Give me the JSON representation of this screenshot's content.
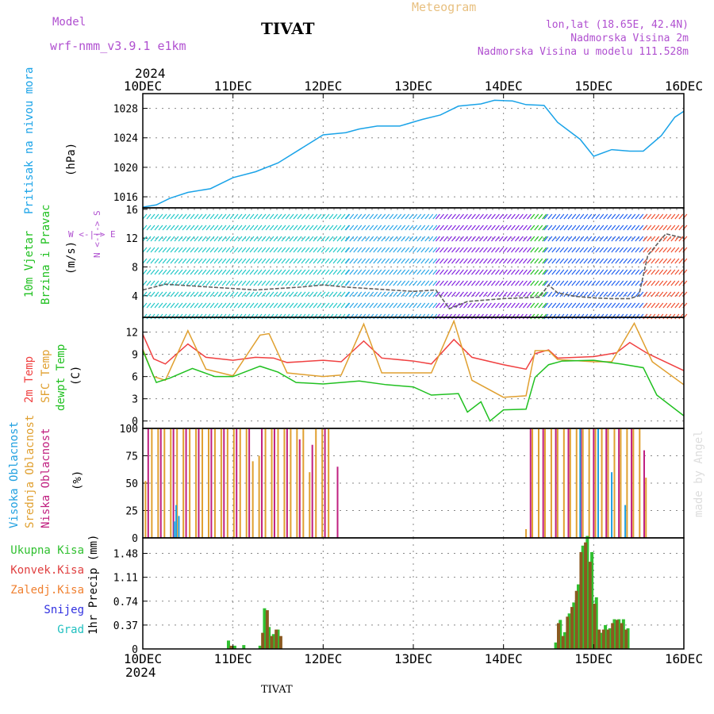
{
  "header": {
    "model_label": "Model",
    "model_name": "wrf-nmm_v3.9.1 e1km",
    "station": "TIVAT",
    "product": "Meteogram",
    "lonlat": "lon,lat (18.65E, 42.4N)",
    "elevation": "Nadmorska Visina 2m",
    "model_elevation": "Nadmorska Visina u modelu 111.528m",
    "year_top": "2024",
    "year_bottom": "2024",
    "footer_station": "TIVAT",
    "watermark": "made by Angel"
  },
  "colors": {
    "pressure": "#1aa3e8",
    "wind_cyan": "#20c8c8",
    "wind_blue": "#2060f0",
    "wind_violet": "#8020e0",
    "temp_2m": "#f04040",
    "temp_sfc": "#e0a030",
    "dewpoint": "#20c020",
    "cloud_high": "#20a0e0",
    "cloud_mid": "#e0a030",
    "cloud_low": "#c02080",
    "precip_total": "#30c030",
    "precip_conv": "#e04040",
    "precip_frz": "#f08030",
    "precip_snow": "#3030e0",
    "precip_hail": "#20c0c0"
  },
  "chart_data": [
    {
      "type": "line",
      "panel": "pressure",
      "ylabel_name": "Pritisak na nivou mora",
      "ylabel_unit": "(hPa)",
      "x_ticks": [
        "10DEC",
        "11DEC",
        "12DEC",
        "13DEC",
        "14DEC",
        "15DEC",
        "16DEC"
      ],
      "y_ticks": [
        "1016",
        "1020",
        "1024",
        "1028"
      ],
      "ylim": [
        1014.5,
        1030.0
      ],
      "grid": true,
      "series": [
        {
          "x": [
            0,
            0.15,
            0.3,
            0.5,
            0.75,
            1.0,
            1.25,
            1.5,
            1.75,
            2.0,
            2.25,
            2.4,
            2.6,
            2.85,
            3.1,
            3.3,
            3.5,
            3.75,
            3.9,
            4.1,
            4.25,
            4.45,
            4.6,
            4.85,
            5.0,
            5.2,
            5.4,
            5.55,
            5.75,
            5.9,
            6.0
          ],
          "values": [
            1014.6,
            1014.9,
            1015.8,
            1016.6,
            1017.1,
            1018.6,
            1019.4,
            1020.6,
            1022.5,
            1024.4,
            1024.7,
            1025.2,
            1025.6,
            1025.6,
            1026.5,
            1027.1,
            1028.3,
            1028.6,
            1029.1,
            1029.0,
            1028.5,
            1028.4,
            1026.1,
            1023.8,
            1021.5,
            1022.4,
            1022.2,
            1022.2,
            1024.3,
            1026.8,
            1027.6
          ]
        }
      ]
    },
    {
      "type": "line",
      "panel": "wind",
      "ylabel_name": "10m Vjetar",
      "ylabel_name2": "Brzina i Pravac",
      "ylabel_unit": "(m/s)",
      "compass_ns": "N <-|-> S",
      "compass_ew": "W <-|-> E",
      "y_ticks": [
        "4",
        "8",
        "12",
        "16"
      ],
      "ylim": [
        1,
        16.2
      ],
      "grid": true,
      "series": [
        {
          "x": [
            0,
            0.25,
            0.5,
            0.75,
            1.0,
            1.25,
            1.5,
            1.75,
            2.0,
            2.25,
            2.5,
            2.75,
            3.0,
            3.25,
            3.4,
            3.6,
            3.8,
            4.0,
            4.2,
            4.4,
            4.5,
            4.6,
            4.8,
            5.0,
            5.2,
            5.4,
            5.5,
            5.6,
            5.8,
            6.0
          ],
          "values": [
            4.8,
            5.6,
            5.4,
            5.2,
            5.0,
            4.8,
            5.0,
            5.2,
            5.5,
            5.2,
            5.0,
            4.8,
            4.6,
            4.8,
            2.2,
            3.2,
            3.4,
            3.6,
            3.7,
            3.8,
            5.5,
            4.4,
            3.9,
            3.7,
            3.6,
            3.6,
            4.0,
            9.6,
            12.6,
            12.0
          ]
        }
      ]
    },
    {
      "type": "line",
      "panel": "temperature",
      "ylabel_name": "2m Temp",
      "ylabel_name2": "SFC Temp",
      "ylabel_name3": "dewpt Temp",
      "ylabel_unit": "(C)",
      "y_ticks": [
        "0",
        "3",
        "6",
        "9",
        "12"
      ],
      "ylim": [
        -1,
        14
      ],
      "grid": true,
      "series": [
        {
          "name": "2m Temp",
          "x": [
            0,
            0.12,
            0.25,
            0.5,
            0.7,
            1.0,
            1.25,
            1.45,
            1.6,
            2.0,
            2.2,
            2.45,
            2.65,
            3.0,
            3.2,
            3.45,
            3.65,
            4.0,
            4.25,
            4.35,
            4.5,
            4.6,
            5.0,
            5.25,
            5.4,
            5.6,
            6.0
          ],
          "values": [
            11.7,
            8.4,
            7.7,
            10.4,
            8.6,
            8.2,
            8.6,
            8.5,
            7.9,
            8.2,
            8.0,
            10.8,
            8.5,
            8.1,
            7.7,
            11.0,
            8.6,
            7.6,
            7.0,
            9.1,
            9.6,
            8.5,
            8.7,
            9.2,
            10.6,
            9.1,
            6.8
          ]
        },
        {
          "name": "SFC Temp",
          "x": [
            0,
            0.12,
            0.25,
            0.5,
            0.7,
            1.0,
            1.3,
            1.4,
            1.6,
            2.0,
            2.2,
            2.45,
            2.65,
            3.0,
            3.2,
            3.45,
            3.65,
            4.0,
            4.25,
            4.35,
            4.5,
            4.6,
            5.0,
            5.2,
            5.45,
            5.65,
            6.0
          ],
          "values": [
            9.7,
            6.0,
            5.5,
            12.2,
            7.0,
            6.1,
            11.6,
            11.8,
            6.5,
            6.0,
            6.2,
            13.1,
            6.5,
            6.5,
            6.5,
            13.5,
            5.5,
            3.2,
            3.4,
            9.5,
            9.5,
            8.3,
            8.0,
            8.0,
            13.2,
            8.0,
            4.9
          ]
        },
        {
          "name": "dewpt Temp",
          "x": [
            0,
            0.15,
            0.3,
            0.55,
            0.8,
            1.0,
            1.3,
            1.5,
            1.7,
            2.0,
            2.4,
            2.7,
            3.0,
            3.2,
            3.5,
            3.6,
            3.75,
            3.85,
            4.0,
            4.25,
            4.35,
            4.5,
            4.65,
            5.0,
            5.3,
            5.55,
            5.7,
            6.0
          ],
          "values": [
            9.5,
            5.2,
            5.8,
            7.1,
            6.0,
            6.0,
            7.4,
            6.6,
            5.2,
            5.0,
            5.4,
            4.9,
            4.6,
            3.5,
            3.7,
            1.2,
            2.6,
            0.0,
            1.5,
            1.6,
            5.9,
            7.6,
            8.1,
            8.2,
            7.7,
            7.2,
            3.5,
            0.7
          ]
        }
      ]
    },
    {
      "type": "bar",
      "panel": "clouds",
      "ylabel_name": "Visoka Oblacnost",
      "ylabel_name2": "Srednja Oblacnost",
      "ylabel_name3": "Niska Oblacnost",
      "ylabel_unit": "(%)",
      "y_ticks": [
        "0",
        "25",
        "50",
        "75",
        "100"
      ],
      "ylim": [
        0,
        100
      ],
      "grid": true,
      "series": [
        {
          "name": "Srednja Oblacnost",
          "x": [
            0.03,
            0.1,
            0.17,
            0.24,
            0.31,
            0.38,
            0.45,
            0.52,
            0.59,
            0.66,
            0.73,
            0.8,
            0.87,
            0.94,
            1.01,
            1.08,
            1.15,
            1.22,
            1.29,
            1.36,
            1.43,
            1.5,
            1.57,
            1.64,
            1.71,
            1.78,
            1.85,
            1.92,
            1.99,
            2.06,
            4.25,
            4.32,
            4.39,
            4.46,
            4.53,
            4.6,
            4.67,
            4.74,
            4.81,
            4.88,
            4.95,
            5.02,
            5.09,
            5.16,
            5.23,
            5.3,
            5.37,
            5.44,
            5.51,
            5.58
          ],
          "values": [
            52,
            100,
            100,
            100,
            100,
            100,
            100,
            100,
            100,
            100,
            100,
            100,
            100,
            100,
            100,
            100,
            100,
            70,
            75,
            100,
            100,
            100,
            100,
            100,
            100,
            100,
            60,
            100,
            100,
            100,
            8,
            100,
            100,
            100,
            100,
            100,
            100,
            100,
            100,
            100,
            100,
            100,
            100,
            100,
            100,
            100,
            100,
            100,
            100,
            55
          ]
        },
        {
          "name": "Niska Oblacnost",
          "x": [
            0.06,
            0.2,
            0.34,
            0.48,
            0.62,
            0.76,
            0.9,
            1.04,
            1.18,
            1.32,
            1.46,
            1.6,
            1.74,
            1.88,
            2.02,
            2.16,
            4.3,
            4.44,
            4.58,
            4.72,
            4.86,
            5.0,
            5.14,
            5.28,
            5.42,
            5.56
          ],
          "values": [
            100,
            100,
            100,
            100,
            100,
            100,
            100,
            100,
            100,
            100,
            100,
            100,
            90,
            85,
            100,
            65,
            100,
            100,
            100,
            100,
            100,
            100,
            100,
            100,
            100,
            80
          ]
        },
        {
          "name": "Visoka Oblacnost",
          "x": [
            0.35,
            0.37,
            0.4,
            4.85,
            5.05,
            5.2,
            5.35
          ],
          "values": [
            15,
            30,
            20,
            100,
            100,
            60,
            30
          ]
        }
      ]
    },
    {
      "type": "bar",
      "panel": "precip",
      "ylabel_unit": "1hr Precip (mm)",
      "legend": [
        "Ukupna Kisa",
        "Konvek.Kisa",
        "Zaledj.Kisa",
        "Snijeg",
        "Grad"
      ],
      "x_ticks": [
        "10DEC",
        "11DEC",
        "12DEC",
        "13DEC",
        "14DEC",
        "15DEC",
        "16DEC"
      ],
      "y_ticks": [
        "0",
        "0.37",
        "0.74",
        "1.11",
        "1.48"
      ],
      "ylim": [
        0,
        1.72
      ],
      "grid": true,
      "series": [
        {
          "name": "Ukupna Kisa",
          "x": [
            0.95,
            1.02,
            1.12,
            1.3,
            1.35,
            1.4,
            1.45,
            1.5,
            4.58,
            4.63,
            4.68,
            4.73,
            4.78,
            4.83,
            4.88,
            4.93,
            4.98,
            5.03,
            5.08,
            5.13,
            5.18,
            5.23,
            5.28,
            5.33,
            5.38
          ],
          "values": [
            0.13,
            0.05,
            0.06,
            0.05,
            0.63,
            0.34,
            0.23,
            0.3,
            0.1,
            0.45,
            0.26,
            0.55,
            0.72,
            1.0,
            1.6,
            1.75,
            1.5,
            0.8,
            0.25,
            0.37,
            0.32,
            0.46,
            0.46,
            0.46,
            0.32
          ]
        },
        {
          "name": "Konvek.Kisa",
          "x": [
            0.98,
            1.33,
            1.38,
            1.43,
            1.48,
            1.53,
            4.61,
            4.66,
            4.71,
            4.76,
            4.81,
            4.86,
            4.91,
            4.96,
            5.01,
            5.06,
            5.11,
            5.16,
            5.21,
            5.26,
            5.31,
            5.36
          ],
          "values": [
            0.05,
            0.25,
            0.6,
            0.2,
            0.3,
            0.2,
            0.4,
            0.2,
            0.5,
            0.65,
            0.9,
            1.5,
            1.65,
            1.35,
            0.7,
            0.3,
            0.3,
            0.3,
            0.4,
            0.45,
            0.4,
            0.3
          ]
        }
      ]
    }
  ]
}
